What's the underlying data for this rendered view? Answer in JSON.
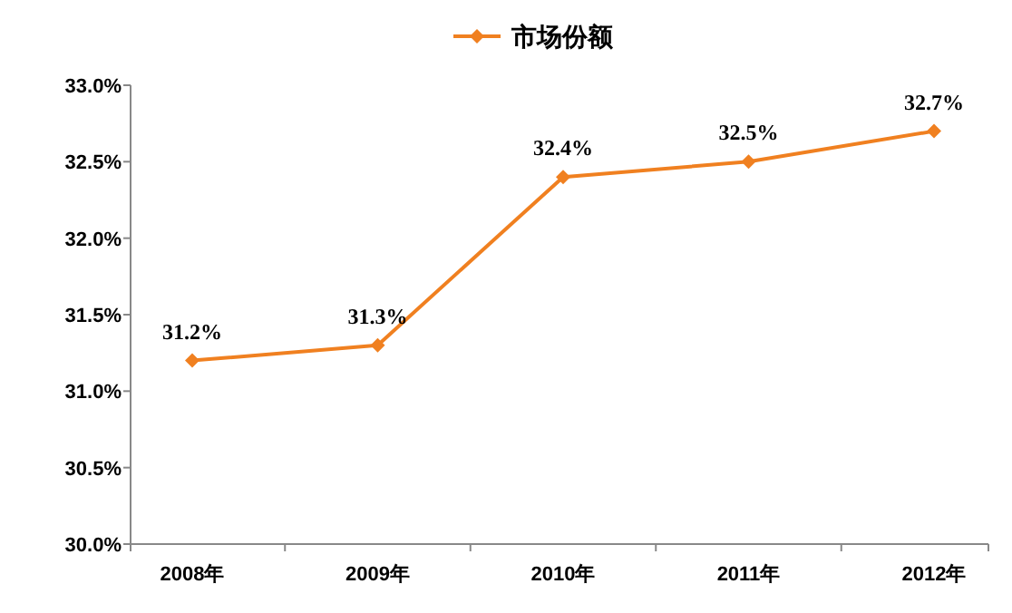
{
  "chart_data": {
    "type": "line",
    "categories": [
      "2008年",
      "2009年",
      "2010年",
      "2011年",
      "2012年"
    ],
    "series": [
      {
        "name": "市场份额",
        "color": "#f08020",
        "values": [
          31.2,
          31.3,
          32.4,
          32.5,
          32.7
        ]
      }
    ],
    "ylim": [
      30.0,
      33.0
    ],
    "yticks": [
      {
        "value": 30.0,
        "label": "30.0%"
      },
      {
        "value": 30.5,
        "label": "30.5%"
      },
      {
        "value": 31.0,
        "label": "31.0%"
      },
      {
        "value": 31.5,
        "label": "31.5%"
      },
      {
        "value": 32.0,
        "label": "32.0%"
      },
      {
        "value": 32.5,
        "label": "32.5%"
      },
      {
        "value": 33.0,
        "label": "33.0%"
      }
    ],
    "value_labels": [
      "31.2%",
      "31.3%",
      "32.4%",
      "32.5%",
      "32.7%"
    ],
    "legend": "top",
    "marker": "diamond",
    "line_style": "solid",
    "grid": false
  }
}
